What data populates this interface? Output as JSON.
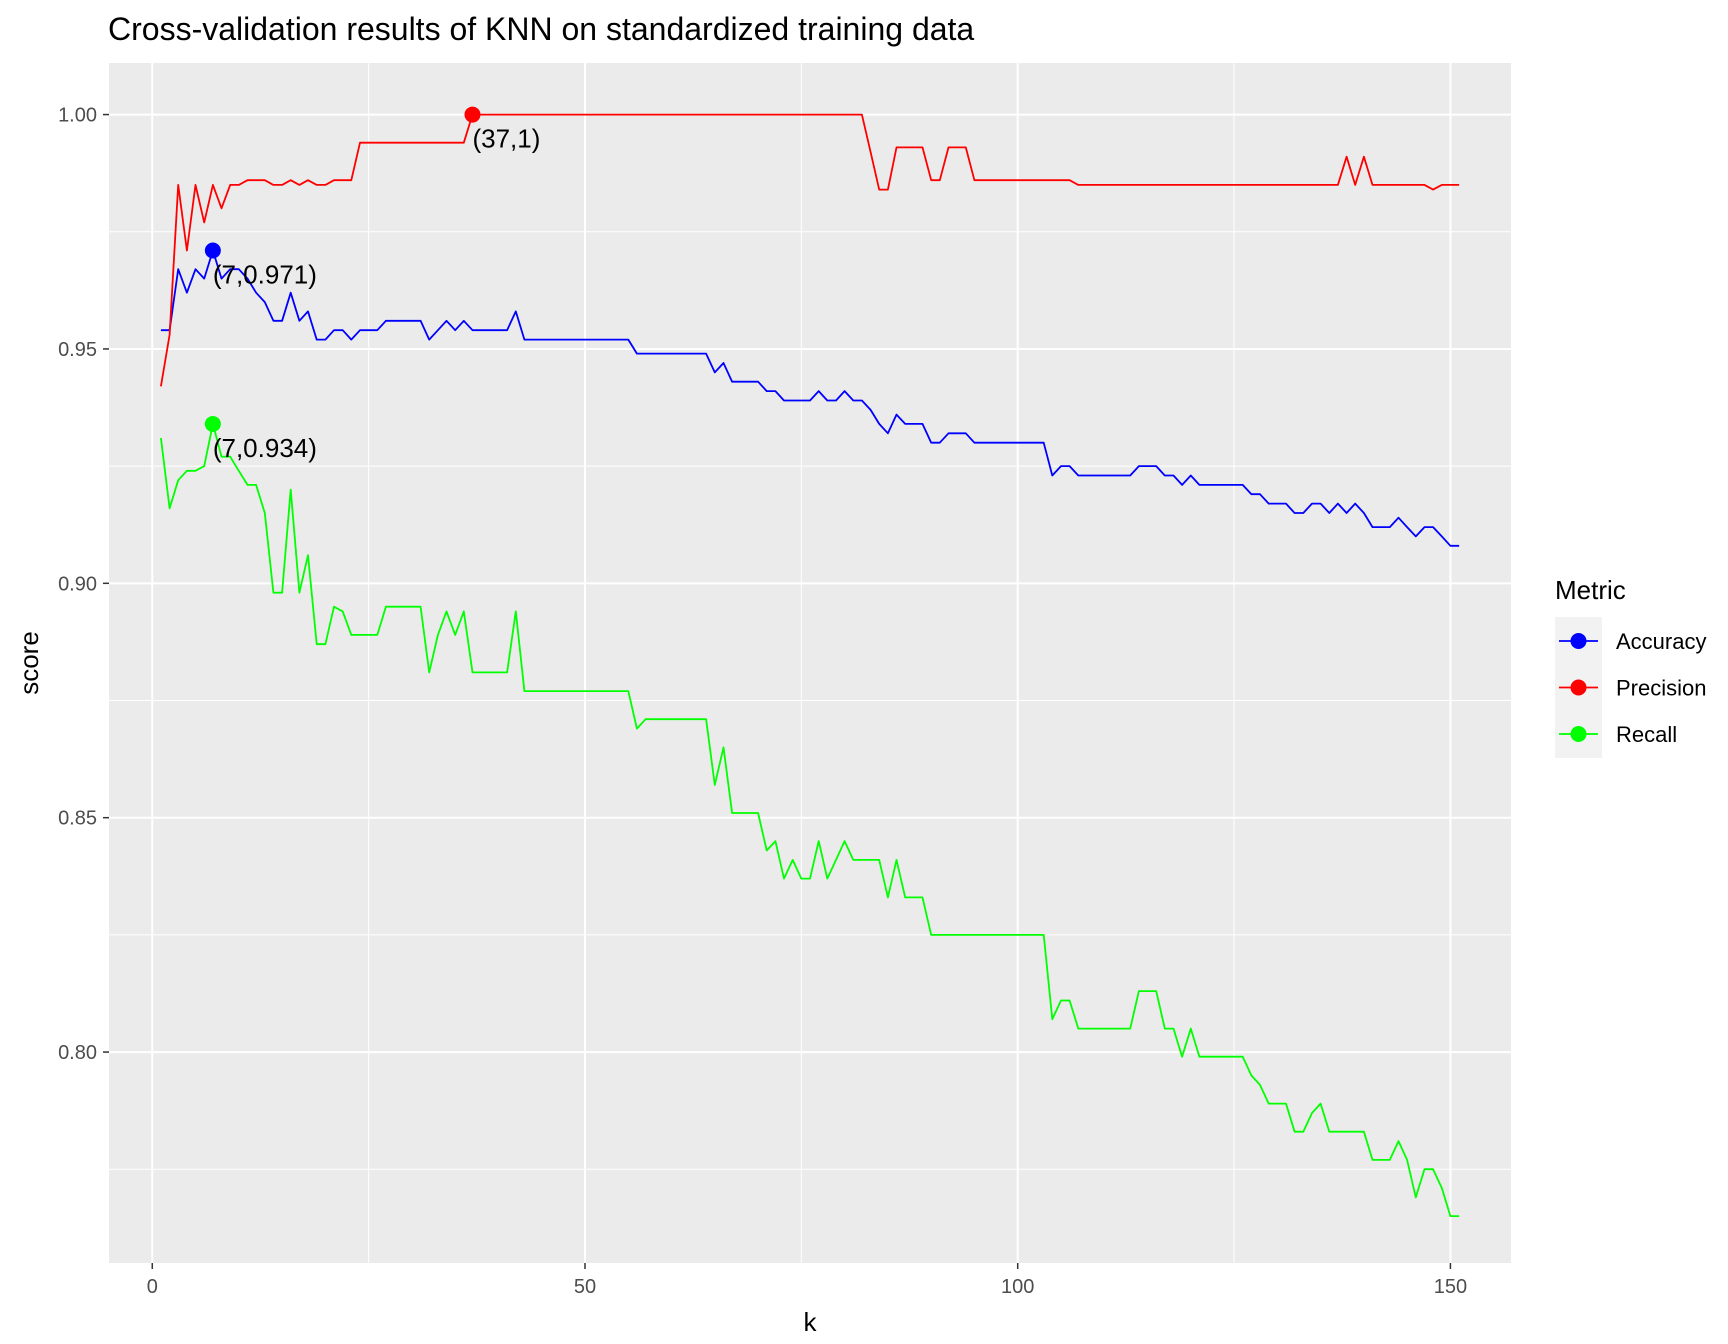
{
  "chart_data": {
    "type": "line",
    "title": "Cross-validation results of KNN on standardized training data",
    "xlabel": "k",
    "ylabel": "score",
    "xlim": [
      -5,
      157
    ],
    "ylim": [
      0.755,
      1.011
    ],
    "x_ticks": [
      0,
      50,
      100,
      150
    ],
    "x_tick_labels": [
      "0",
      "50",
      "100",
      "150"
    ],
    "y_ticks": [
      0.8,
      0.85,
      0.9,
      0.95,
      1.0
    ],
    "y_tick_labels": [
      "0.80",
      "0.85",
      "0.90",
      "0.95",
      "1.00"
    ],
    "grid": true,
    "legend_title": "Metric",
    "legend_position": "right",
    "series": [
      {
        "name": "Accuracy",
        "color": "#0000ff",
        "x": [
          1,
          2,
          3,
          4,
          5,
          6,
          7,
          8,
          9,
          10,
          11,
          12,
          13,
          14,
          15,
          16,
          17,
          18,
          19,
          20,
          21,
          22,
          23,
          24,
          25,
          26,
          27,
          28,
          29,
          30,
          31,
          32,
          33,
          34,
          35,
          36,
          37,
          38,
          39,
          40,
          41,
          42,
          43,
          44,
          45,
          46,
          47,
          48,
          49,
          50,
          51,
          52,
          53,
          54,
          55,
          56,
          57,
          58,
          59,
          60,
          61,
          62,
          63,
          64,
          65,
          66,
          67,
          68,
          69,
          70,
          71,
          72,
          73,
          74,
          75,
          76,
          77,
          78,
          79,
          80,
          81,
          82,
          83,
          84,
          85,
          86,
          87,
          88,
          89,
          90,
          91,
          92,
          93,
          94,
          95,
          96,
          97,
          98,
          99,
          100,
          101,
          102,
          103,
          104,
          105,
          106,
          107,
          108,
          109,
          110,
          111,
          112,
          113,
          114,
          115,
          116,
          117,
          118,
          119,
          120,
          121,
          122,
          123,
          124,
          125,
          126,
          127,
          128,
          129,
          130,
          131,
          132,
          133,
          134,
          135,
          136,
          137,
          138,
          139,
          140,
          141,
          142,
          143,
          144,
          145,
          146,
          147,
          148,
          149,
          150,
          151
        ],
        "values": [
          0.954,
          0.954,
          0.967,
          0.962,
          0.967,
          0.965,
          0.971,
          0.965,
          0.967,
          0.967,
          0.965,
          0.962,
          0.96,
          0.956,
          0.956,
          0.962,
          0.956,
          0.958,
          0.952,
          0.952,
          0.954,
          0.954,
          0.952,
          0.954,
          0.954,
          0.954,
          0.956,
          0.956,
          0.956,
          0.956,
          0.956,
          0.952,
          0.954,
          0.956,
          0.954,
          0.956,
          0.954,
          0.954,
          0.954,
          0.954,
          0.954,
          0.958,
          0.952,
          0.952,
          0.952,
          0.952,
          0.952,
          0.952,
          0.952,
          0.952,
          0.952,
          0.952,
          0.952,
          0.952,
          0.952,
          0.949,
          0.949,
          0.949,
          0.949,
          0.949,
          0.949,
          0.949,
          0.949,
          0.949,
          0.945,
          0.947,
          0.943,
          0.943,
          0.943,
          0.943,
          0.941,
          0.941,
          0.939,
          0.939,
          0.939,
          0.939,
          0.941,
          0.939,
          0.939,
          0.941,
          0.939,
          0.939,
          0.937,
          0.934,
          0.932,
          0.936,
          0.934,
          0.934,
          0.934,
          0.93,
          0.93,
          0.932,
          0.932,
          0.932,
          0.93,
          0.93,
          0.93,
          0.93,
          0.93,
          0.93,
          0.93,
          0.93,
          0.93,
          0.923,
          0.925,
          0.925,
          0.923,
          0.923,
          0.923,
          0.923,
          0.923,
          0.923,
          0.923,
          0.925,
          0.925,
          0.925,
          0.923,
          0.923,
          0.921,
          0.923,
          0.921,
          0.921,
          0.921,
          0.921,
          0.921,
          0.921,
          0.919,
          0.919,
          0.917,
          0.917,
          0.917,
          0.915,
          0.915,
          0.917,
          0.917,
          0.915,
          0.917,
          0.915,
          0.917,
          0.915,
          0.912,
          0.912,
          0.912,
          0.914,
          0.912,
          0.91,
          0.912,
          0.912,
          0.91,
          0.908,
          0.908
        ]
      },
      {
        "name": "Precision",
        "color": "#ff0000",
        "x": [
          1,
          2,
          3,
          4,
          5,
          6,
          7,
          8,
          9,
          10,
          11,
          12,
          13,
          14,
          15,
          16,
          17,
          18,
          19,
          20,
          21,
          22,
          23,
          24,
          25,
          26,
          27,
          28,
          29,
          30,
          31,
          32,
          33,
          34,
          35,
          36,
          37,
          38,
          39,
          40,
          41,
          42,
          43,
          44,
          45,
          46,
          47,
          48,
          49,
          50,
          51,
          52,
          53,
          54,
          55,
          56,
          57,
          58,
          59,
          60,
          61,
          62,
          63,
          64,
          65,
          66,
          67,
          68,
          69,
          70,
          71,
          72,
          73,
          74,
          75,
          76,
          77,
          78,
          79,
          80,
          81,
          82,
          83,
          84,
          85,
          86,
          87,
          88,
          89,
          90,
          91,
          92,
          93,
          94,
          95,
          96,
          97,
          98,
          99,
          100,
          101,
          102,
          103,
          104,
          105,
          106,
          107,
          108,
          109,
          110,
          111,
          112,
          113,
          114,
          115,
          116,
          117,
          118,
          119,
          120,
          121,
          122,
          123,
          124,
          125,
          126,
          127,
          128,
          129,
          130,
          131,
          132,
          133,
          134,
          135,
          136,
          137,
          138,
          139,
          140,
          141,
          142,
          143,
          144,
          145,
          146,
          147,
          148,
          149,
          150,
          151
        ],
        "values": [
          0.942,
          0.953,
          0.985,
          0.971,
          0.985,
          0.977,
          0.985,
          0.98,
          0.985,
          0.985,
          0.986,
          0.986,
          0.986,
          0.985,
          0.985,
          0.986,
          0.985,
          0.986,
          0.985,
          0.985,
          0.986,
          0.986,
          0.986,
          0.994,
          0.994,
          0.994,
          0.994,
          0.994,
          0.994,
          0.994,
          0.994,
          0.994,
          0.994,
          0.994,
          0.994,
          0.994,
          1.0,
          1.0,
          1.0,
          1.0,
          1.0,
          1.0,
          1.0,
          1.0,
          1.0,
          1.0,
          1.0,
          1.0,
          1.0,
          1.0,
          1.0,
          1.0,
          1.0,
          1.0,
          1.0,
          1.0,
          1.0,
          1.0,
          1.0,
          1.0,
          1.0,
          1.0,
          1.0,
          1.0,
          1.0,
          1.0,
          1.0,
          1.0,
          1.0,
          1.0,
          1.0,
          1.0,
          1.0,
          1.0,
          1.0,
          1.0,
          1.0,
          1.0,
          1.0,
          1.0,
          1.0,
          1.0,
          0.992,
          0.984,
          0.984,
          0.993,
          0.993,
          0.993,
          0.993,
          0.986,
          0.986,
          0.993,
          0.993,
          0.993,
          0.986,
          0.986,
          0.986,
          0.986,
          0.986,
          0.986,
          0.986,
          0.986,
          0.986,
          0.986,
          0.986,
          0.986,
          0.985,
          0.985,
          0.985,
          0.985,
          0.985,
          0.985,
          0.985,
          0.985,
          0.985,
          0.985,
          0.985,
          0.985,
          0.985,
          0.985,
          0.985,
          0.985,
          0.985,
          0.985,
          0.985,
          0.985,
          0.985,
          0.985,
          0.985,
          0.985,
          0.985,
          0.985,
          0.985,
          0.985,
          0.985,
          0.985,
          0.985,
          0.991,
          0.985,
          0.991,
          0.985,
          0.985,
          0.985,
          0.985,
          0.985,
          0.985,
          0.985,
          0.984,
          0.985,
          0.985,
          0.985
        ]
      },
      {
        "name": "Recall",
        "color": "#00ff00",
        "x": [
          1,
          2,
          3,
          4,
          5,
          6,
          7,
          8,
          9,
          10,
          11,
          12,
          13,
          14,
          15,
          16,
          17,
          18,
          19,
          20,
          21,
          22,
          23,
          24,
          25,
          26,
          27,
          28,
          29,
          30,
          31,
          32,
          33,
          34,
          35,
          36,
          37,
          38,
          39,
          40,
          41,
          42,
          43,
          44,
          45,
          46,
          47,
          48,
          49,
          50,
          51,
          52,
          53,
          54,
          55,
          56,
          57,
          58,
          59,
          60,
          61,
          62,
          63,
          64,
          65,
          66,
          67,
          68,
          69,
          70,
          71,
          72,
          73,
          74,
          75,
          76,
          77,
          78,
          79,
          80,
          81,
          82,
          83,
          84,
          85,
          86,
          87,
          88,
          89,
          90,
          91,
          92,
          93,
          94,
          95,
          96,
          97,
          98,
          99,
          100,
          101,
          102,
          103,
          104,
          105,
          106,
          107,
          108,
          109,
          110,
          111,
          112,
          113,
          114,
          115,
          116,
          117,
          118,
          119,
          120,
          121,
          122,
          123,
          124,
          125,
          126,
          127,
          128,
          129,
          130,
          131,
          132,
          133,
          134,
          135,
          136,
          137,
          138,
          139,
          140,
          141,
          142,
          143,
          144,
          145,
          146,
          147,
          148,
          149,
          150,
          151
        ],
        "values": [
          0.931,
          0.916,
          0.922,
          0.924,
          0.924,
          0.925,
          0.934,
          0.927,
          0.927,
          0.924,
          0.921,
          0.921,
          0.915,
          0.898,
          0.898,
          0.92,
          0.898,
          0.906,
          0.887,
          0.887,
          0.895,
          0.894,
          0.889,
          0.889,
          0.889,
          0.889,
          0.895,
          0.895,
          0.895,
          0.895,
          0.895,
          0.881,
          0.889,
          0.894,
          0.889,
          0.894,
          0.881,
          0.881,
          0.881,
          0.881,
          0.881,
          0.894,
          0.877,
          0.877,
          0.877,
          0.877,
          0.877,
          0.877,
          0.877,
          0.877,
          0.877,
          0.877,
          0.877,
          0.877,
          0.877,
          0.869,
          0.871,
          0.871,
          0.871,
          0.871,
          0.871,
          0.871,
          0.871,
          0.871,
          0.857,
          0.865,
          0.851,
          0.851,
          0.851,
          0.851,
          0.843,
          0.845,
          0.837,
          0.841,
          0.837,
          0.837,
          0.845,
          0.837,
          0.841,
          0.845,
          0.841,
          0.841,
          0.841,
          0.841,
          0.833,
          0.841,
          0.833,
          0.833,
          0.833,
          0.825,
          0.825,
          0.825,
          0.825,
          0.825,
          0.825,
          0.825,
          0.825,
          0.825,
          0.825,
          0.825,
          0.825,
          0.825,
          0.825,
          0.807,
          0.811,
          0.811,
          0.805,
          0.805,
          0.805,
          0.805,
          0.805,
          0.805,
          0.805,
          0.813,
          0.813,
          0.813,
          0.805,
          0.805,
          0.799,
          0.805,
          0.799,
          0.799,
          0.799,
          0.799,
          0.799,
          0.799,
          0.795,
          0.793,
          0.789,
          0.789,
          0.789,
          0.783,
          0.783,
          0.787,
          0.789,
          0.783,
          0.783,
          0.783,
          0.783,
          0.783,
          0.777,
          0.777,
          0.777,
          0.781,
          0.777,
          0.769,
          0.775,
          0.775,
          0.771,
          0.765,
          0.765
        ]
      }
    ],
    "highlights": [
      {
        "series": "Accuracy",
        "x": 7,
        "y": 0.971,
        "label": "(7,0.971)"
      },
      {
        "series": "Precision",
        "x": 37,
        "y": 1.0,
        "label": "(37,1)"
      },
      {
        "series": "Recall",
        "x": 7,
        "y": 0.934,
        "label": "(7,0.934)"
      }
    ]
  }
}
